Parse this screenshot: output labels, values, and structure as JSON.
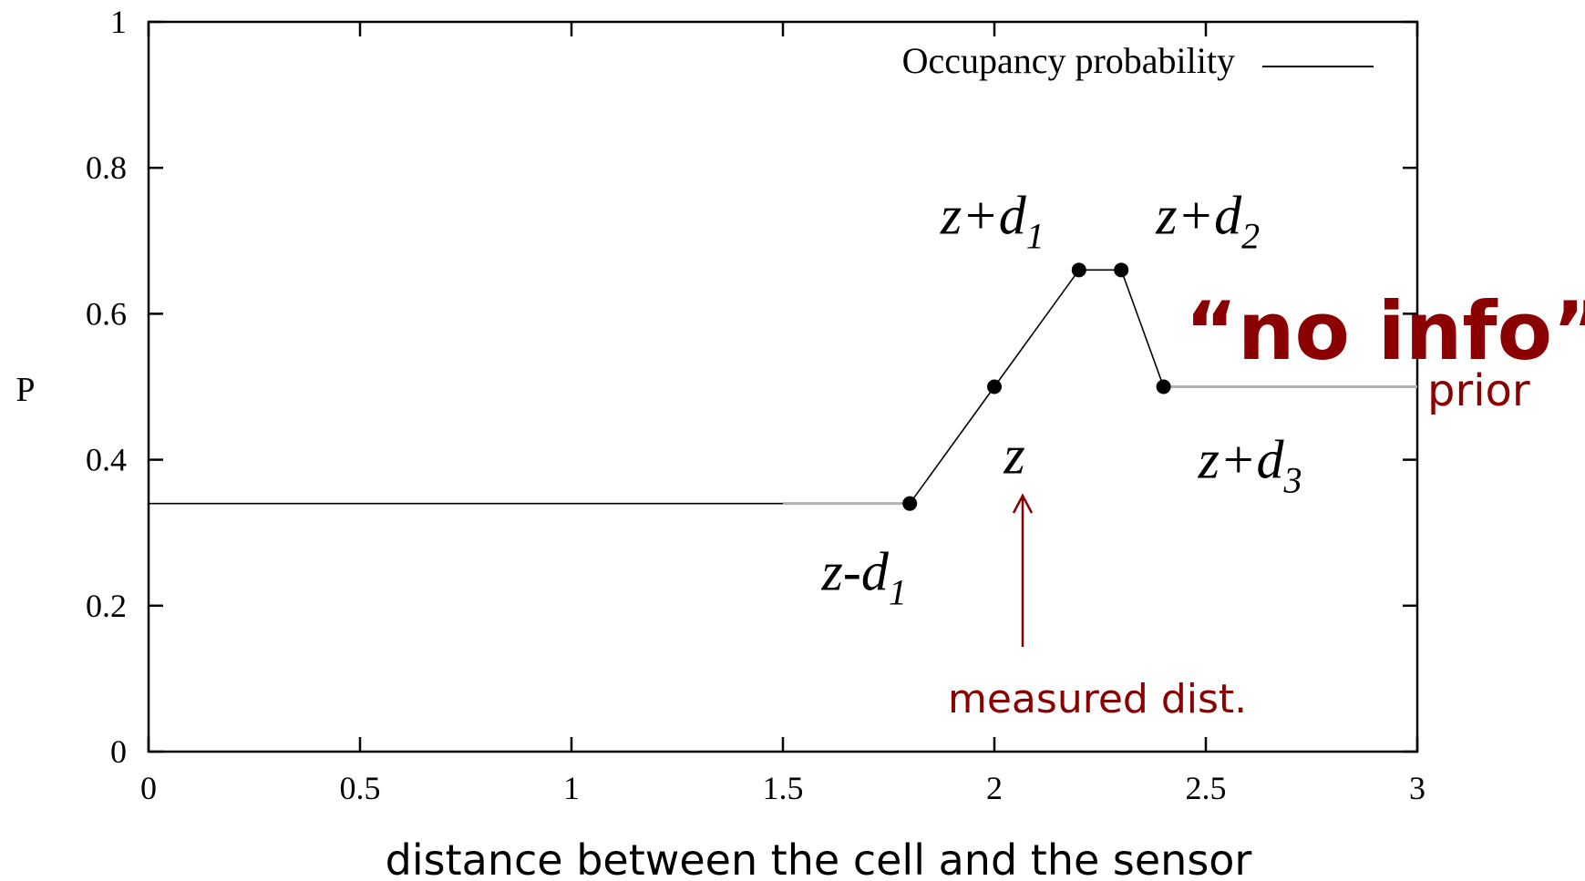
{
  "chart_data": {
    "type": "line",
    "ylabel": "P",
    "xlabel": "distance between the cell and the sensor",
    "xlim": [
      0,
      3
    ],
    "ylim": [
      0,
      1
    ],
    "x_ticks": [
      0,
      0.5,
      1,
      1.5,
      2,
      2.5,
      3
    ],
    "x_tick_labels": [
      "0",
      "0.5",
      "1",
      "1.5",
      "2",
      "2.5",
      "3"
    ],
    "y_ticks": [
      0,
      0.2,
      0.4,
      0.6,
      0.8,
      1
    ],
    "y_tick_labels": [
      "0",
      "0.2",
      "0.4",
      "0.6",
      "0.8",
      "1"
    ],
    "grid": false,
    "legend": {
      "position": "top-right",
      "entries": [
        "Occupancy probability"
      ]
    },
    "series": [
      {
        "name": "Occupancy probability",
        "x": [
          0,
          1.5,
          1.8,
          2.0,
          2.2,
          2.3,
          2.4,
          3.0
        ],
        "y": [
          0.34,
          0.34,
          0.34,
          0.5,
          0.66,
          0.66,
          0.5,
          0.5
        ]
      }
    ],
    "points": [
      {
        "x": 1.8,
        "y": 0.34,
        "base": "z-d",
        "sub": "1"
      },
      {
        "x": 2.0,
        "y": 0.5,
        "base": "z",
        "sub": ""
      },
      {
        "x": 2.2,
        "y": 0.66,
        "base": "z+d",
        "sub": "1"
      },
      {
        "x": 2.3,
        "y": 0.66,
        "base": "z+d",
        "sub": "2"
      },
      {
        "x": 2.4,
        "y": 0.5,
        "base": "z+d",
        "sub": "3"
      }
    ],
    "annotations": {
      "no_info": "“no info”",
      "prior": "prior",
      "measured": "measured dist."
    },
    "colors": {
      "line": "#000000",
      "gray_segment": "#b0b0b0",
      "annotation": "#8b0000"
    }
  }
}
